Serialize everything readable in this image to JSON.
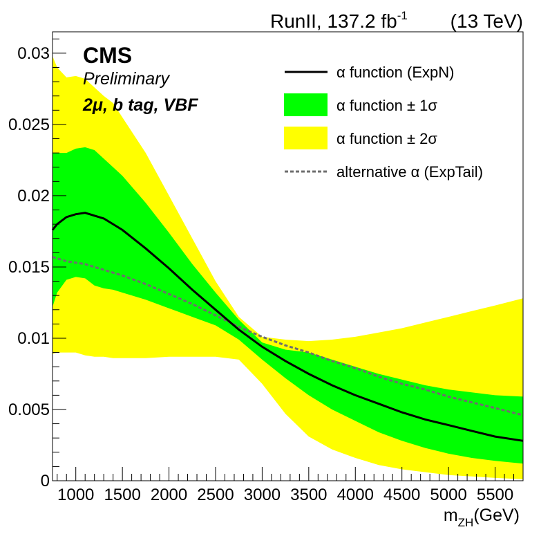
{
  "chart_data": {
    "type": "area",
    "header": {
      "text": "RunII, 137.2 fb",
      "sup": "-1",
      "energy": "(13 TeV)"
    },
    "cms": {
      "label": "CMS",
      "status": "Preliminary",
      "category": "2μ, b tag, VBF"
    },
    "xlabel": {
      "main": "m",
      "sub": "ZH",
      "unit": "(GeV)"
    },
    "ylabel": "",
    "xlim": [
      750,
      5800
    ],
    "ylim": [
      0,
      0.0315
    ],
    "xticks": [
      1000,
      1500,
      2000,
      2500,
      3000,
      3500,
      4000,
      4500,
      5000,
      5500
    ],
    "xtick_labels": [
      "1000",
      "1500",
      "2000",
      "2500",
      "3000",
      "3500",
      "4000",
      "4500",
      "5000",
      "5500"
    ],
    "yticks": [
      0,
      0.005,
      0.01,
      0.015,
      0.02,
      0.025,
      0.03
    ],
    "ytick_labels": [
      "0",
      "0.005",
      "0.01",
      "0.015",
      "0.02",
      "0.025",
      "0.03"
    ],
    "legend_position": "top-right",
    "colors": {
      "nominal": "#000000",
      "one_sigma": "#00ff00",
      "two_sigma": "#ffff00",
      "alternative": "#6e6e6e"
    },
    "legend": [
      {
        "key": "nominal",
        "label": "α function (ExpN)"
      },
      {
        "key": "one_sigma",
        "label": "α function ± 1σ"
      },
      {
        "key": "two_sigma",
        "label": "α function ± 2σ"
      },
      {
        "key": "alternative",
        "label": "alternative α (ExpTail)"
      }
    ],
    "x": [
      750,
      800,
      900,
      1000,
      1100,
      1200,
      1300,
      1400,
      1500,
      1750,
      2000,
      2250,
      2500,
      2750,
      3000,
      3250,
      3500,
      3750,
      4000,
      4250,
      4500,
      4750,
      5000,
      5250,
      5500,
      5800
    ],
    "series": [
      {
        "key": "nominal",
        "name": "α function (ExpN)",
        "values": [
          0.0176,
          0.018,
          0.0185,
          0.0187,
          0.0188,
          0.0186,
          0.0184,
          0.018,
          0.0176,
          0.0163,
          0.0149,
          0.0134,
          0.012,
          0.0106,
          0.0094,
          0.0084,
          0.0075,
          0.0067,
          0.006,
          0.0054,
          0.0048,
          0.0043,
          0.0039,
          0.0035,
          0.0031,
          0.0028
        ]
      },
      {
        "key": "one_sigma",
        "name": "α function ± 1σ",
        "upper": [
          0.023,
          0.023,
          0.023,
          0.0233,
          0.0234,
          0.0232,
          0.0226,
          0.022,
          0.0214,
          0.0195,
          0.0174,
          0.0152,
          0.0132,
          0.0113,
          0.0097,
          0.0092,
          0.009,
          0.0085,
          0.008,
          0.0075,
          0.0071,
          0.0067,
          0.0064,
          0.0062,
          0.006,
          0.0059
        ],
        "lower": [
          0.0122,
          0.0132,
          0.0141,
          0.0143,
          0.0142,
          0.0137,
          0.0135,
          0.0134,
          0.0132,
          0.0127,
          0.0121,
          0.0115,
          0.0109,
          0.0099,
          0.0085,
          0.0072,
          0.006,
          0.005,
          0.0042,
          0.0034,
          0.0028,
          0.0023,
          0.0019,
          0.0016,
          0.0014,
          0.0012
        ]
      },
      {
        "key": "two_sigma",
        "name": "α function ± 2σ",
        "upper": [
          0.0298,
          0.029,
          0.0283,
          0.0284,
          0.0282,
          0.0276,
          0.027,
          0.0265,
          0.0255,
          0.023,
          0.02,
          0.017,
          0.014,
          0.0115,
          0.0101,
          0.0099,
          0.0098,
          0.0099,
          0.0101,
          0.0104,
          0.0107,
          0.0111,
          0.0115,
          0.0119,
          0.0123,
          0.0128
        ],
        "lower": [
          0.0089,
          0.009,
          0.009,
          0.009,
          0.0088,
          0.0087,
          0.0087,
          0.0086,
          0.0086,
          0.0086,
          0.0087,
          0.0087,
          0.0087,
          0.0085,
          0.0068,
          0.0047,
          0.0031,
          0.0022,
          0.0016,
          0.0011,
          0.0008,
          0.0006,
          0.0004,
          0.0003,
          0.0002,
          0.0001
        ]
      },
      {
        "key": "alternative",
        "name": "alternative α (ExpTail)",
        "values": [
          0.0157,
          0.0156,
          0.0154,
          0.0153,
          0.0152,
          0.015,
          0.0148,
          0.0146,
          0.0144,
          0.0138,
          0.0131,
          0.0124,
          0.0116,
          0.0108,
          0.0101,
          0.0095,
          0.009,
          0.0084,
          0.0079,
          0.0073,
          0.0068,
          0.0064,
          0.0059,
          0.0055,
          0.0051,
          0.0046
        ]
      }
    ]
  }
}
